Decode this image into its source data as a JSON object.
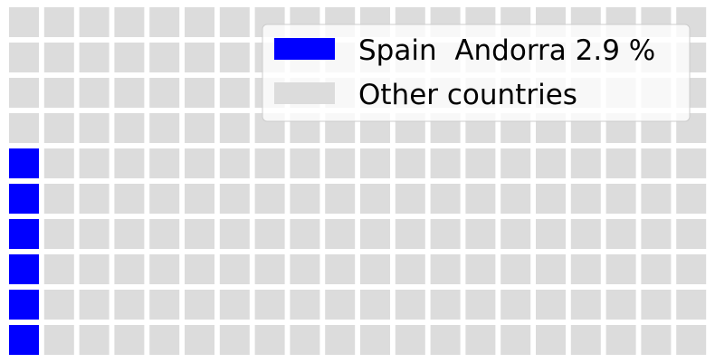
{
  "chart_data": {
    "type": "waffle",
    "rows": 10,
    "columns": 20,
    "fill_order": "column-major, bottom-to-top",
    "categories": [
      {
        "label": "Spain  Andorra 2.9 %",
        "cells": 6,
        "color": "#0000ff"
      },
      {
        "label": "Other countries",
        "cells": 194,
        "color": "#dcdcdc"
      }
    ],
    "legend_position": "top-right",
    "grid_lines": false,
    "axes": false
  }
}
